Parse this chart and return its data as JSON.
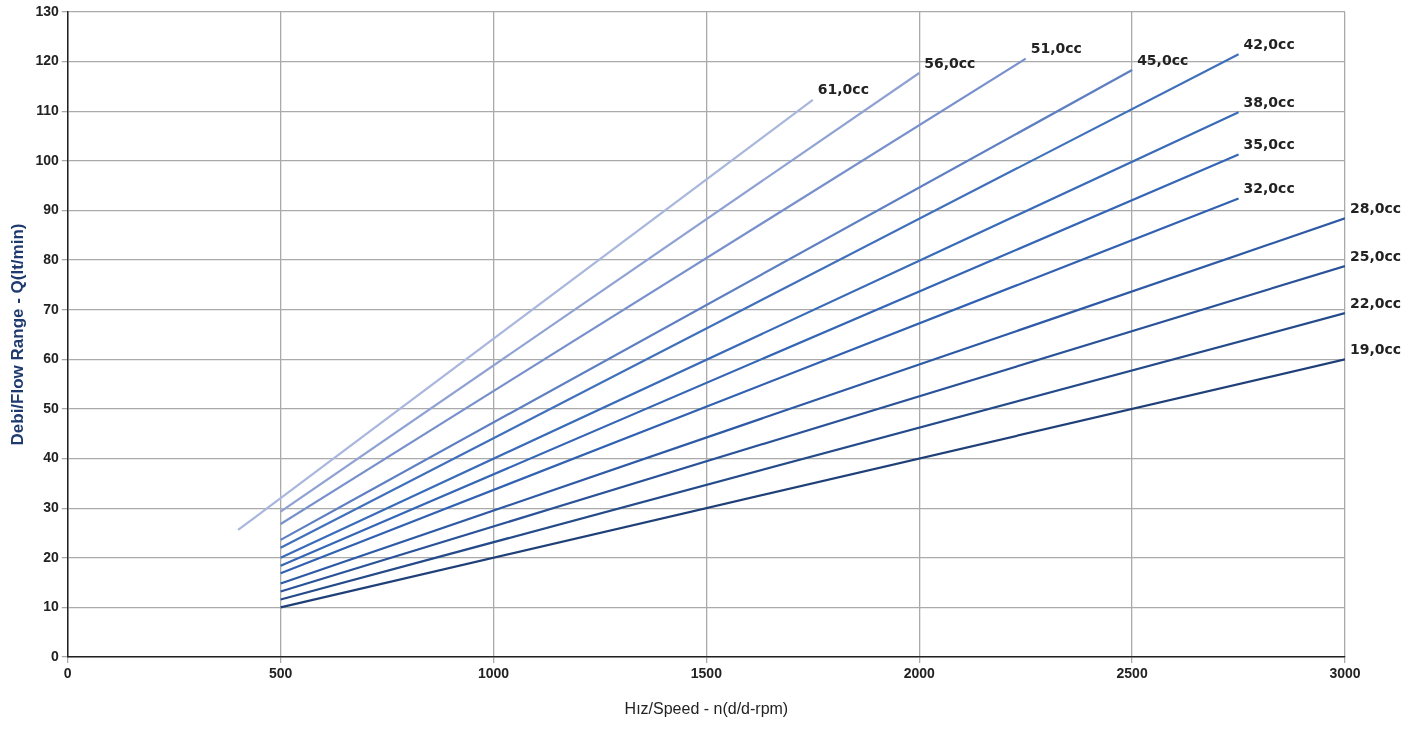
{
  "chart_data": {
    "type": "line",
    "xlabel": "Hız/Speed - n(d/d-rpm)",
    "ylabel": "Debi/Flow Range - Q(lt/min)",
    "xlim": [
      0,
      3000
    ],
    "xticks": [
      0,
      500,
      1000,
      1500,
      2000,
      2500,
      3000
    ],
    "ylim": [
      0,
      130
    ],
    "yticks": [
      0,
      10,
      20,
      30,
      40,
      50,
      60,
      70,
      80,
      90,
      100,
      110,
      120,
      130
    ],
    "grid": true,
    "legend": false,
    "marker": "none",
    "line_style": "solid",
    "series": [
      {
        "name": "19,0cc",
        "color": "#1f3f78",
        "x": [
          500,
          3000
        ],
        "values": [
          10,
          60
        ]
      },
      {
        "name": "22,0cc",
        "color": "#244a8a",
        "x": [
          500,
          3000
        ],
        "values": [
          11.6,
          69.3
        ]
      },
      {
        "name": "25,0cc",
        "color": "#2a5298",
        "x": [
          500,
          3000
        ],
        "values": [
          13.2,
          78.8
        ]
      },
      {
        "name": "28,0cc",
        "color": "#2e5aa5",
        "x": [
          500,
          3000
        ],
        "values": [
          14.8,
          88.4
        ]
      },
      {
        "name": "32,0cc",
        "color": "#3161b0",
        "x": [
          500,
          2750
        ],
        "values": [
          16.9,
          92.4
        ]
      },
      {
        "name": "35,0cc",
        "color": "#3566b5",
        "x": [
          500,
          2750
        ],
        "values": [
          18.4,
          101.3
        ]
      },
      {
        "name": "38,0cc",
        "color": "#3a6bb8",
        "x": [
          500,
          2750
        ],
        "values": [
          20,
          109.8
        ]
      },
      {
        "name": "42,0cc",
        "color": "#4070bb",
        "x": [
          500,
          2750
        ],
        "values": [
          22,
          121.5
        ]
      },
      {
        "name": "45,0cc",
        "color": "#5e7fc2",
        "x": [
          500,
          2500
        ],
        "values": [
          23.6,
          118.3
        ]
      },
      {
        "name": "51,0cc",
        "color": "#7890cb",
        "x": [
          500,
          2250
        ],
        "values": [
          26.8,
          120.6
        ]
      },
      {
        "name": "56,0cc",
        "color": "#8fa2d3",
        "x": [
          500,
          2000
        ],
        "values": [
          29.3,
          117.7
        ]
      },
      {
        "name": "61,0cc",
        "color": "#a9b7dd",
        "x": [
          400,
          1750
        ],
        "values": [
          25.6,
          112.3
        ]
      }
    ]
  }
}
